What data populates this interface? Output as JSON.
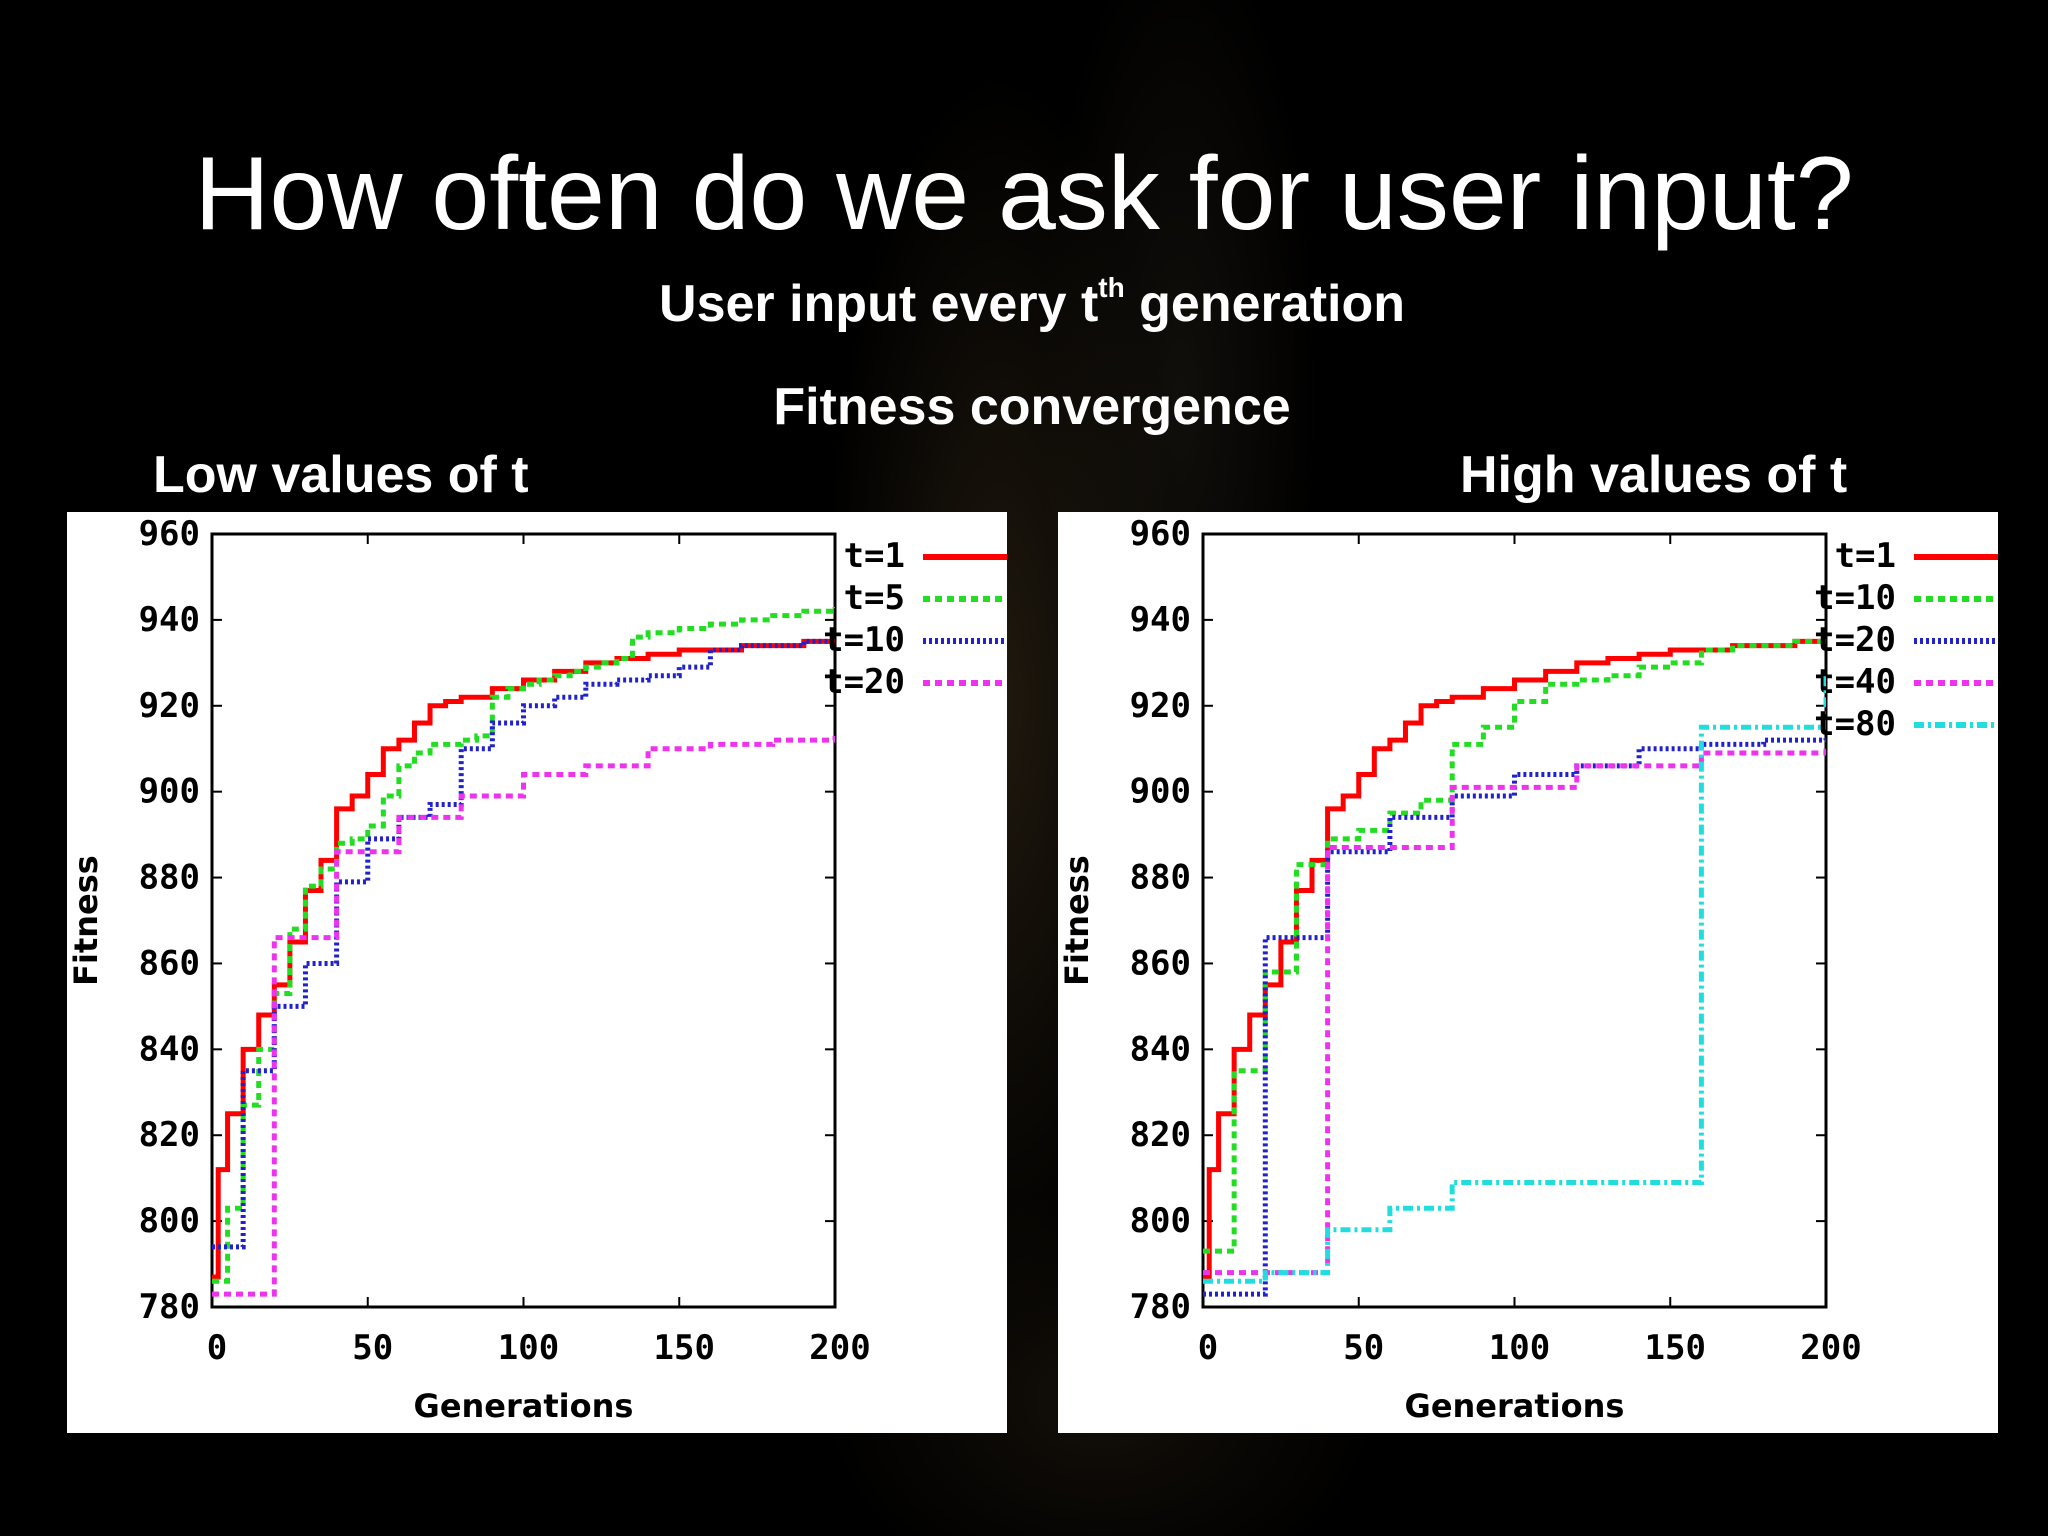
{
  "slide": {
    "title": "How often do we ask for user input?",
    "subtitle_pre": "User input every t",
    "subtitle_sup": "th",
    "subtitle_post": " generation",
    "caption": "Fitness convergence",
    "left_label": "Low values of t",
    "right_label": "High values of t"
  },
  "colors": {
    "background": "#000000",
    "t1": "#ff0000",
    "t5": "#22dd22",
    "t10": "#22dd22",
    "t20": "#2222cc",
    "t40": "#ee33ee",
    "t80": "#22dddd"
  },
  "chart_data": [
    {
      "type": "line",
      "xlabel": "Generations",
      "ylabel": "Fitness",
      "xlim": [
        0,
        200
      ],
      "ylim": [
        780,
        960
      ],
      "xticks": [
        "0",
        "50",
        "100",
        "150",
        "200"
      ],
      "yticks": [
        "780",
        "800",
        "820",
        "840",
        "860",
        "880",
        "900",
        "920",
        "940",
        "960"
      ],
      "legend_position": "top-right",
      "series": [
        {
          "name": "t=1",
          "color": "#ff0000",
          "style": "solid",
          "x": [
            0,
            2,
            5,
            10,
            15,
            20,
            25,
            30,
            35,
            40,
            45,
            50,
            55,
            60,
            65,
            70,
            75,
            80,
            90,
            100,
            110,
            120,
            130,
            140,
            150,
            160,
            170,
            180,
            190,
            200
          ],
          "y": [
            787,
            812,
            825,
            840,
            848,
            855,
            865,
            877,
            884,
            896,
            899,
            904,
            910,
            912,
            916,
            920,
            921,
            922,
            924,
            926,
            928,
            930,
            931,
            932,
            933,
            933,
            934,
            934,
            935,
            935
          ]
        },
        {
          "name": "t=5",
          "color": "#22dd22",
          "style": "dashed",
          "x": [
            0,
            5,
            10,
            15,
            20,
            25,
            30,
            35,
            40,
            45,
            50,
            55,
            60,
            65,
            70,
            75,
            80,
            85,
            90,
            95,
            100,
            105,
            110,
            115,
            120,
            125,
            130,
            135,
            140,
            150,
            160,
            170,
            180,
            190,
            200
          ],
          "y": [
            786,
            803,
            827,
            840,
            853,
            868,
            878,
            882,
            888,
            889,
            892,
            899,
            906,
            909,
            911,
            911,
            912,
            913,
            922,
            924,
            925,
            926,
            927,
            928,
            929,
            930,
            931,
            936,
            937,
            938,
            939,
            940,
            941,
            942,
            943
          ]
        },
        {
          "name": "t=10",
          "color": "#2222cc",
          "style": "dotted",
          "x": [
            0,
            10,
            20,
            30,
            40,
            50,
            60,
            70,
            80,
            90,
            100,
            110,
            120,
            130,
            140,
            150,
            160,
            170,
            180,
            190,
            200
          ],
          "y": [
            794,
            835,
            850,
            860,
            879,
            889,
            894,
            897,
            910,
            916,
            920,
            922,
            925,
            926,
            927,
            929,
            933,
            934,
            934,
            935,
            935
          ]
        },
        {
          "name": "t=20",
          "color": "#ee33ee",
          "style": "dashed",
          "x": [
            0,
            20,
            40,
            60,
            80,
            100,
            120,
            140,
            160,
            180,
            200
          ],
          "y": [
            783,
            866,
            886,
            894,
            899,
            904,
            906,
            910,
            911,
            912,
            913
          ]
        }
      ]
    },
    {
      "type": "line",
      "xlabel": "Generations",
      "ylabel": "Fitness",
      "xlim": [
        0,
        200
      ],
      "ylim": [
        780,
        960
      ],
      "xticks": [
        "0",
        "50",
        "100",
        "150",
        "200"
      ],
      "yticks": [
        "780",
        "800",
        "820",
        "840",
        "860",
        "880",
        "900",
        "920",
        "940",
        "960"
      ],
      "legend_position": "top-right",
      "series": [
        {
          "name": "t=1",
          "color": "#ff0000",
          "style": "solid",
          "x": [
            0,
            2,
            5,
            10,
            15,
            20,
            25,
            30,
            35,
            40,
            45,
            50,
            55,
            60,
            65,
            70,
            75,
            80,
            90,
            100,
            110,
            120,
            130,
            140,
            150,
            160,
            170,
            180,
            190,
            200
          ],
          "y": [
            787,
            812,
            825,
            840,
            848,
            855,
            865,
            877,
            884,
            896,
            899,
            904,
            910,
            912,
            916,
            920,
            921,
            922,
            924,
            926,
            928,
            930,
            931,
            932,
            933,
            933,
            934,
            934,
            935,
            935
          ]
        },
        {
          "name": "t=10",
          "color": "#22dd22",
          "style": "dashed",
          "x": [
            0,
            10,
            20,
            30,
            40,
            50,
            60,
            70,
            80,
            90,
            100,
            110,
            120,
            130,
            140,
            150,
            160,
            170,
            180,
            190,
            200
          ],
          "y": [
            793,
            835,
            858,
            883,
            889,
            891,
            895,
            898,
            911,
            915,
            921,
            925,
            926,
            927,
            929,
            930,
            933,
            934,
            934,
            935,
            935
          ]
        },
        {
          "name": "t=20",
          "color": "#2222cc",
          "style": "dotted",
          "x": [
            0,
            20,
            40,
            60,
            80,
            100,
            120,
            140,
            160,
            180,
            200
          ],
          "y": [
            783,
            866,
            886,
            894,
            899,
            904,
            906,
            910,
            911,
            912,
            913
          ]
        },
        {
          "name": "t=40",
          "color": "#ee33ee",
          "style": "dashed",
          "x": [
            0,
            40,
            80,
            120,
            160,
            200
          ],
          "y": [
            788,
            887,
            901,
            906,
            909,
            910
          ]
        },
        {
          "name": "t=80",
          "color": "#22dddd",
          "style": "dashdot",
          "x": [
            0,
            20,
            40,
            60,
            80,
            160,
            200
          ],
          "y": [
            786,
            788,
            798,
            803,
            809,
            915,
            927
          ]
        }
      ]
    }
  ]
}
